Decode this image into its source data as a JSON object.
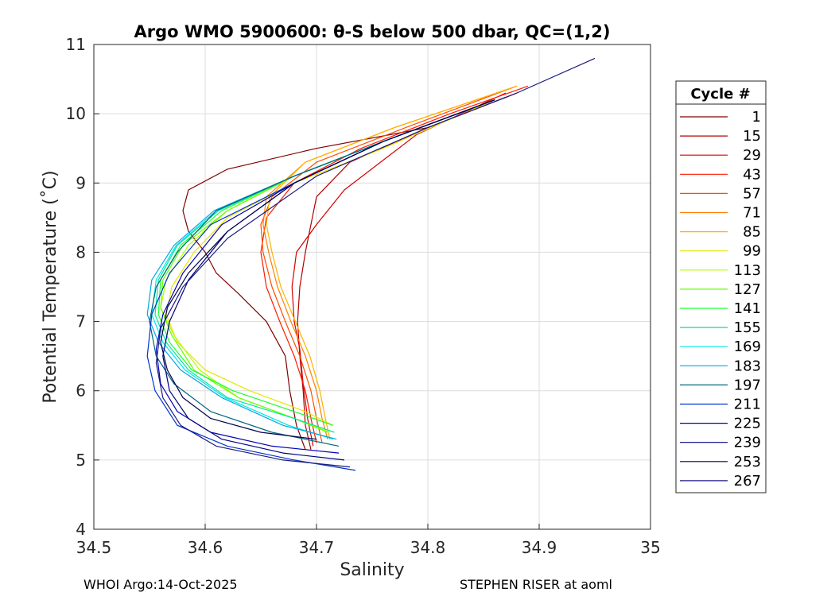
{
  "chart_data": {
    "type": "line",
    "title": "Argo WMO 5900600: θ-S below 500 dbar,  QC=(1,2)",
    "xlabel": "Salinity",
    "ylabel": "Potential Temperature (˚C)",
    "xlim": [
      34.5,
      35.0
    ],
    "ylim": [
      4,
      11
    ],
    "xticks": [
      34.5,
      34.6,
      34.7,
      34.8,
      34.9,
      35.0
    ],
    "xtick_labels": [
      "34.5",
      "34.6",
      "34.7",
      "34.8",
      "34.9",
      "35"
    ],
    "yticks": [
      4,
      5,
      6,
      7,
      8,
      9,
      10,
      11
    ],
    "ytick_labels": [
      "4",
      "5",
      "6",
      "7",
      "8",
      "9",
      "10",
      "11"
    ],
    "grid": true,
    "legend_title": "Cycle #",
    "legend_position": "right-outside",
    "series": [
      {
        "name": "1",
        "color": "#800000",
        "x": [
          34.69,
          34.682,
          34.676,
          34.672,
          34.655,
          34.63,
          34.61,
          34.6,
          34.585,
          34.58,
          34.585,
          34.62,
          34.7,
          34.8,
          34.88
        ],
        "y": [
          5.15,
          5.5,
          6.0,
          6.5,
          7.0,
          7.4,
          7.7,
          8.0,
          8.3,
          8.6,
          8.9,
          9.2,
          9.5,
          9.8,
          10.3
        ]
      },
      {
        "name": "15",
        "color": "#b30000",
        "x": [
          34.695,
          34.69,
          34.688,
          34.685,
          34.683,
          34.685,
          34.69,
          34.695,
          34.7,
          34.73,
          34.8,
          34.88
        ],
        "y": [
          5.15,
          5.5,
          6.0,
          6.5,
          7.0,
          7.5,
          8.0,
          8.4,
          8.8,
          9.3,
          9.8,
          10.3
        ]
      },
      {
        "name": "29",
        "color": "#d40000",
        "x": [
          34.697,
          34.692,
          34.688,
          34.685,
          34.68,
          34.678,
          34.682,
          34.7,
          34.725,
          34.79,
          34.87
        ],
        "y": [
          5.2,
          5.6,
          6.1,
          6.6,
          7.0,
          7.5,
          8.0,
          8.4,
          8.9,
          9.7,
          10.3
        ]
      },
      {
        "name": "43",
        "color": "#ff1a00",
        "x": [
          34.7,
          34.695,
          34.69,
          34.68,
          34.667,
          34.655,
          34.65,
          34.655,
          34.68,
          34.74,
          34.82,
          34.89
        ],
        "y": [
          5.25,
          5.6,
          6.0,
          6.5,
          7.0,
          7.5,
          8.0,
          8.5,
          9.0,
          9.5,
          10.0,
          10.4
        ]
      },
      {
        "name": "57",
        "color": "#ff4d00",
        "x": [
          34.705,
          34.7,
          34.695,
          34.685,
          34.672,
          34.66,
          34.652,
          34.65,
          34.66,
          34.7,
          34.78,
          34.88
        ],
        "y": [
          5.25,
          5.6,
          6.0,
          6.5,
          7.0,
          7.5,
          8.0,
          8.4,
          8.8,
          9.3,
          9.8,
          10.4
        ]
      },
      {
        "name": "71",
        "color": "#ff8000",
        "x": [
          34.71,
          34.705,
          34.7,
          34.69,
          34.677,
          34.665,
          34.657,
          34.652,
          34.655,
          34.69,
          34.77,
          34.88
        ],
        "y": [
          5.3,
          5.6,
          6.0,
          6.5,
          7.0,
          7.5,
          8.0,
          8.4,
          8.8,
          9.3,
          9.8,
          10.4
        ]
      },
      {
        "name": "85",
        "color": "#ffb300",
        "x": [
          34.712,
          34.708,
          34.703,
          34.694,
          34.681,
          34.668,
          34.66,
          34.655,
          34.658,
          34.69,
          34.77,
          34.88
        ],
        "y": [
          5.3,
          5.6,
          6.0,
          6.5,
          7.0,
          7.5,
          8.0,
          8.4,
          8.8,
          9.3,
          9.8,
          10.4
        ]
      },
      {
        "name": "99",
        "color": "#e6e600",
        "x": [
          34.715,
          34.69,
          34.64,
          34.6,
          34.575,
          34.565,
          34.57,
          34.59,
          34.62,
          34.68,
          34.76,
          34.86
        ],
        "y": [
          5.5,
          5.7,
          6.0,
          6.3,
          6.7,
          7.1,
          7.5,
          8.0,
          8.5,
          9.0,
          9.5,
          10.2
        ]
      },
      {
        "name": "113",
        "color": "#b3ff00",
        "x": [
          34.712,
          34.68,
          34.63,
          34.595,
          34.572,
          34.56,
          34.565,
          34.585,
          34.62,
          34.68,
          34.76,
          34.86
        ],
        "y": [
          5.4,
          5.6,
          5.9,
          6.3,
          6.8,
          7.2,
          7.6,
          8.1,
          8.6,
          9.1,
          9.6,
          10.2
        ]
      },
      {
        "name": "127",
        "color": "#66ff00",
        "x": [
          34.71,
          34.68,
          34.63,
          34.59,
          34.57,
          34.56,
          34.562,
          34.58,
          34.62,
          34.68,
          34.76,
          34.86
        ],
        "y": [
          5.4,
          5.6,
          5.9,
          6.3,
          6.8,
          7.2,
          7.6,
          8.1,
          8.6,
          9.1,
          9.6,
          10.2
        ]
      },
      {
        "name": "141",
        "color": "#1aff33",
        "x": [
          34.715,
          34.68,
          34.625,
          34.588,
          34.568,
          34.558,
          34.56,
          34.578,
          34.615,
          34.68,
          34.76,
          34.86
        ],
        "y": [
          5.5,
          5.7,
          6.0,
          6.3,
          6.7,
          7.1,
          7.6,
          8.1,
          8.6,
          9.1,
          9.6,
          10.2
        ]
      },
      {
        "name": "155",
        "color": "#00e6a0",
        "x": [
          34.716,
          34.68,
          34.62,
          34.585,
          34.565,
          34.555,
          34.558,
          34.575,
          34.612,
          34.68,
          34.76,
          34.86
        ],
        "y": [
          5.4,
          5.6,
          5.9,
          6.3,
          6.7,
          7.1,
          7.6,
          8.1,
          8.6,
          9.1,
          9.6,
          10.2
        ]
      },
      {
        "name": "169",
        "color": "#00e6e6",
        "x": [
          34.715,
          34.675,
          34.618,
          34.582,
          34.562,
          34.552,
          34.556,
          34.574,
          34.61,
          34.68,
          34.76,
          34.86
        ],
        "y": [
          5.3,
          5.5,
          5.9,
          6.3,
          6.7,
          7.1,
          7.6,
          8.1,
          8.6,
          9.1,
          9.6,
          10.2
        ]
      },
      {
        "name": "183",
        "color": "#00a6e6",
        "x": [
          34.718,
          34.67,
          34.615,
          34.578,
          34.558,
          34.548,
          34.552,
          34.572,
          34.608,
          34.68,
          34.76,
          34.86
        ],
        "y": [
          5.3,
          5.5,
          5.9,
          6.3,
          6.7,
          7.1,
          7.6,
          8.1,
          8.6,
          9.1,
          9.6,
          10.2
        ]
      },
      {
        "name": "197",
        "color": "#006680",
        "x": [
          34.72,
          34.66,
          34.605,
          34.572,
          34.556,
          34.55,
          34.556,
          34.575,
          34.61,
          34.68,
          34.76,
          34.86
        ],
        "y": [
          5.2,
          5.4,
          5.7,
          6.1,
          6.5,
          7.0,
          7.5,
          8.0,
          8.6,
          9.1,
          9.6,
          10.2
        ]
      },
      {
        "name": "211",
        "color": "#0033cc",
        "x": [
          34.735,
          34.68,
          34.62,
          34.575,
          34.555,
          34.548,
          34.552,
          34.568,
          34.605,
          34.68,
          34.76,
          34.86
        ],
        "y": [
          4.85,
          5.0,
          5.2,
          5.5,
          6.0,
          6.5,
          7.1,
          7.7,
          8.4,
          9.0,
          9.6,
          10.2
        ]
      },
      {
        "name": "225",
        "color": "#0000b3",
        "x": [
          34.72,
          34.66,
          34.605,
          34.575,
          34.56,
          34.556,
          34.562,
          34.58,
          34.615,
          34.68,
          34.76,
          34.86
        ],
        "y": [
          5.1,
          5.2,
          5.4,
          5.7,
          6.1,
          6.6,
          7.1,
          7.7,
          8.4,
          9.0,
          9.6,
          10.2
        ]
      },
      {
        "name": "239",
        "color": "#000080",
        "x": [
          34.725,
          34.67,
          34.615,
          34.585,
          34.568,
          34.562,
          34.568,
          34.585,
          34.62,
          34.68,
          34.76,
          34.86
        ],
        "y": [
          5.0,
          5.1,
          5.3,
          5.6,
          6.0,
          6.5,
          7.0,
          7.6,
          8.3,
          9.0,
          9.6,
          10.2
        ]
      },
      {
        "name": "253",
        "color": "#00004d",
        "x": [
          34.7,
          34.65,
          34.605,
          34.58,
          34.566,
          34.56,
          34.566,
          34.585,
          34.62,
          34.68,
          34.76,
          34.86
        ],
        "y": [
          5.3,
          5.4,
          5.6,
          5.9,
          6.3,
          6.7,
          7.2,
          7.7,
          8.3,
          9.0,
          9.6,
          10.2
        ]
      },
      {
        "name": "267",
        "color": "#1a1a80",
        "x": [
          34.73,
          34.67,
          34.61,
          34.578,
          34.562,
          34.556,
          34.56,
          34.58,
          34.62,
          34.7,
          34.8,
          34.88,
          34.95
        ],
        "y": [
          4.9,
          5.0,
          5.2,
          5.5,
          5.9,
          6.4,
          6.9,
          7.5,
          8.2,
          9.1,
          9.8,
          10.3,
          10.8
        ]
      }
    ]
  },
  "footer": {
    "left": "WHOI Argo:14-Oct-2025",
    "right": "STEPHEN RISER at aoml"
  }
}
